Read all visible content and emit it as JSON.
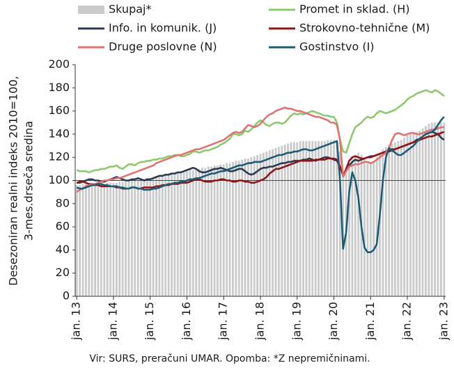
{
  "chart_data": {
    "type": "bar_line",
    "y_axis_label": [
      "Desezoniran realni indeks 2010=100,",
      "3-mes.drseča sredina"
    ],
    "footnote": "Vir: SURS, preračuni UMAR. Opomba: *Z nepremičninami.",
    "categories": [
      "jan. 13",
      null,
      null,
      null,
      null,
      null,
      null,
      null,
      null,
      null,
      null,
      null,
      "jan. 14",
      null,
      null,
      null,
      null,
      null,
      null,
      null,
      null,
      null,
      null,
      null,
      "jan. 15",
      null,
      null,
      null,
      null,
      null,
      null,
      null,
      null,
      null,
      null,
      null,
      "jan. 16",
      null,
      null,
      null,
      null,
      null,
      null,
      null,
      null,
      null,
      null,
      null,
      "jan. 17",
      null,
      null,
      null,
      null,
      null,
      null,
      null,
      null,
      null,
      null,
      null,
      "jan. 18",
      null,
      null,
      null,
      null,
      null,
      null,
      null,
      null,
      null,
      null,
      null,
      "jan. 19",
      null,
      null,
      null,
      null,
      null,
      null,
      null,
      null,
      null,
      null,
      null,
      "jan. 20",
      null,
      null,
      null,
      null,
      null,
      null,
      null,
      null,
      null,
      null,
      null,
      "jan. 21",
      null,
      null,
      null,
      null,
      null,
      null,
      null,
      null,
      null,
      null,
      null,
      "jan. 22",
      null,
      null,
      null,
      null,
      null,
      null,
      null,
      null,
      null,
      null,
      null,
      "jan. 23"
    ],
    "ylim": [
      0,
      200
    ],
    "yticks": [
      0,
      20,
      40,
      60,
      80,
      100,
      120,
      140,
      160,
      180,
      200
    ],
    "reference_line": 100,
    "series": [
      {
        "name": "Skupaj*",
        "type": "bar",
        "color": "#c9cacc",
        "values": [
          96,
          96,
          97,
          97,
          96,
          96,
          97,
          97,
          97,
          97,
          98,
          98,
          98,
          98,
          99,
          99,
          99,
          100,
          100,
          100,
          101,
          101,
          101,
          102,
          102,
          103,
          103,
          104,
          104,
          105,
          105,
          106,
          106,
          107,
          107,
          108,
          108,
          109,
          109,
          110,
          110,
          111,
          111,
          112,
          112,
          113,
          113,
          114,
          114,
          115,
          115,
          116,
          117,
          117,
          118,
          119,
          119,
          120,
          121,
          122,
          123,
          124,
          125,
          126,
          127,
          128,
          129,
          130,
          131,
          132,
          133,
          133,
          133,
          134,
          134,
          134,
          134,
          134,
          134,
          134,
          134,
          134,
          135,
          135,
          135,
          134,
          125,
          102,
          106,
          115,
          120,
          122,
          124,
          122,
          118,
          116,
          115,
          116,
          120,
          124,
          127,
          129,
          131,
          132,
          133,
          134,
          135,
          137,
          139,
          140,
          141,
          142,
          143,
          145,
          147,
          149,
          150,
          150,
          150,
          150,
          150
        ]
      },
      {
        "name": "Promet in sklad. (H)",
        "type": "line",
        "color": "#8cc96c",
        "values": [
          109,
          108,
          108,
          108,
          107,
          108,
          109,
          109,
          110,
          110,
          111,
          112,
          112,
          113,
          111,
          110,
          112,
          114,
          114,
          113,
          115,
          116,
          116,
          117,
          117,
          118,
          118,
          119,
          119,
          120,
          121,
          121,
          122,
          122,
          121,
          121,
          122,
          123,
          125,
          125,
          124,
          125,
          126,
          126,
          127,
          128,
          129,
          131,
          132,
          134,
          136,
          140,
          140,
          139,
          140,
          143,
          142,
          144,
          147,
          150,
          152,
          150,
          148,
          147,
          149,
          150,
          150,
          149,
          150,
          153,
          156,
          158,
          157,
          158,
          157,
          158,
          159,
          160,
          159,
          158,
          157,
          156,
          156,
          155,
          155,
          150,
          135,
          125,
          124,
          132,
          140,
          146,
          148,
          150,
          153,
          155,
          154,
          155,
          158,
          160,
          159,
          158,
          159,
          160,
          161,
          163,
          165,
          167,
          170,
          172,
          173,
          175,
          176,
          177,
          178,
          177,
          176,
          178,
          177,
          175,
          173
        ]
      },
      {
        "name": "Info. in komunik. (J)",
        "type": "line",
        "color": "#2c3a52",
        "values": [
          98,
          98,
          99,
          100,
          101,
          101,
          100,
          100,
          99,
          99,
          100,
          101,
          102,
          103,
          102,
          101,
          100,
          100,
          101,
          101,
          102,
          101,
          100,
          101,
          101,
          102,
          103,
          104,
          104,
          105,
          105,
          106,
          106,
          107,
          107,
          108,
          109,
          110,
          111,
          110,
          108,
          107,
          107,
          108,
          109,
          110,
          110,
          111,
          110,
          109,
          108,
          108,
          109,
          110,
          110,
          108,
          106,
          105,
          106,
          108,
          110,
          111,
          111,
          112,
          112,
          113,
          114,
          115,
          115,
          116,
          116,
          117,
          117,
          117,
          118,
          118,
          119,
          118,
          117,
          118,
          119,
          120,
          120,
          119,
          118,
          117,
          112,
          105,
          108,
          113,
          116,
          118,
          117,
          118,
          119,
          120,
          121,
          121,
          122,
          123,
          124,
          125,
          125,
          126,
          127,
          128,
          129,
          130,
          131,
          132,
          133,
          135,
          136,
          138,
          140,
          141,
          142,
          141,
          140,
          137,
          135
        ]
      },
      {
        "name": "Strokovno-tehnične (M)",
        "type": "line",
        "color": "#8e1616",
        "values": [
          98,
          99,
          99,
          98,
          97,
          97,
          96,
          96,
          95,
          95,
          95,
          95,
          95,
          94,
          94,
          93,
          93,
          93,
          94,
          94,
          93,
          93,
          94,
          94,
          94,
          94,
          95,
          95,
          96,
          96,
          96,
          97,
          97,
          97,
          98,
          98,
          98,
          99,
          100,
          101,
          101,
          100,
          99,
          99,
          99,
          100,
          100,
          101,
          101,
          100,
          100,
          99,
          99,
          100,
          100,
          99,
          99,
          98,
          98,
          99,
          100,
          101,
          103,
          106,
          108,
          110,
          110,
          111,
          112,
          113,
          114,
          115,
          116,
          117,
          117,
          117,
          117,
          117,
          118,
          118,
          118,
          118,
          119,
          119,
          119,
          118,
          112,
          104,
          110,
          117,
          120,
          121,
          120,
          119,
          119,
          120,
          120,
          121,
          122,
          123,
          124,
          125,
          126,
          127,
          127,
          128,
          129,
          130,
          131,
          132,
          133,
          134,
          135,
          136,
          137,
          138,
          138,
          139,
          140,
          141,
          142
        ]
      },
      {
        "name": "Druge poslovne (N)",
        "type": "line",
        "color": "#e07272",
        "values": [
          90,
          92,
          93,
          95,
          96,
          97,
          97,
          98,
          99,
          100,
          100,
          101,
          101,
          102,
          102,
          103,
          104,
          105,
          106,
          107,
          108,
          109,
          110,
          111,
          112,
          113,
          115,
          116,
          117,
          118,
          119,
          120,
          121,
          122,
          122,
          123,
          124,
          125,
          126,
          127,
          127,
          128,
          129,
          130,
          131,
          132,
          133,
          134,
          135,
          137,
          139,
          141,
          142,
          141,
          142,
          145,
          148,
          147,
          146,
          147,
          149,
          152,
          155,
          157,
          158,
          160,
          161,
          162,
          163,
          162,
          162,
          161,
          160,
          160,
          159,
          158,
          157,
          156,
          155,
          155,
          154,
          153,
          152,
          150,
          150,
          148,
          135,
          103,
          108,
          112,
          113,
          114,
          114,
          115,
          116,
          116,
          115,
          116,
          118,
          120,
          122,
          124,
          128,
          135,
          140,
          141,
          140,
          139,
          140,
          141,
          141,
          140,
          140,
          141,
          142,
          143,
          144,
          144,
          145,
          146,
          146
        ]
      },
      {
        "name": "Gostinstvo (I)",
        "type": "line",
        "color": "#1e5c76",
        "values": [
          94,
          93,
          93,
          94,
          95,
          96,
          96,
          97,
          97,
          96,
          96,
          95,
          95,
          95,
          94,
          94,
          93,
          93,
          94,
          94,
          93,
          93,
          92,
          92,
          92,
          93,
          93,
          94,
          95,
          96,
          97,
          97,
          98,
          98,
          99,
          99,
          100,
          101,
          101,
          102,
          102,
          103,
          104,
          105,
          106,
          106,
          107,
          108,
          108,
          109,
          110,
          111,
          112,
          113,
          113,
          114,
          115,
          115,
          116,
          116,
          116,
          117,
          118,
          119,
          120,
          121,
          122,
          122,
          123,
          124,
          124,
          125,
          125,
          126,
          127,
          127,
          126,
          126,
          127,
          128,
          129,
          130,
          131,
          132,
          133,
          134,
          100,
          41,
          55,
          90,
          107,
          100,
          85,
          60,
          42,
          38,
          38,
          40,
          45,
          70,
          100,
          120,
          128,
          126,
          124,
          122,
          122,
          124,
          126,
          128,
          130,
          133,
          136,
          138,
          140,
          141,
          142,
          144,
          148,
          152,
          155
        ]
      }
    ]
  }
}
